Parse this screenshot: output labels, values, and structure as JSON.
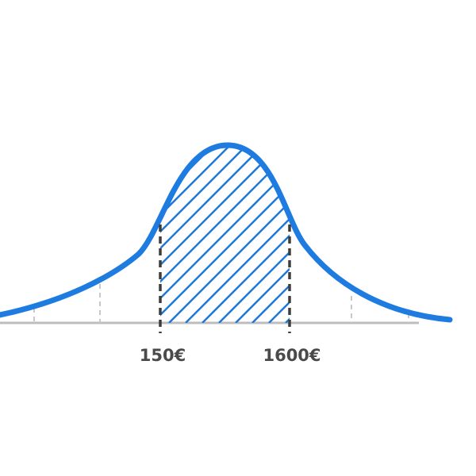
{
  "markers": [
    {
      "label": "150€"
    },
    {
      "label": "1600€"
    }
  ]
}
